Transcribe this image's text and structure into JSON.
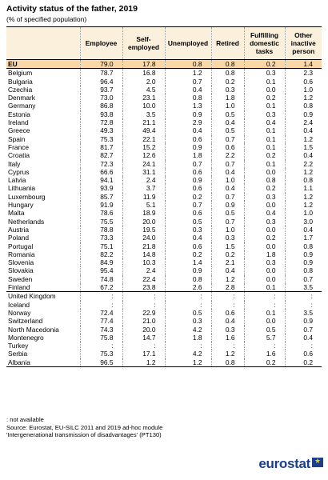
{
  "title": "Activity status of the father, 2019",
  "subtitle": "(% of specified population)",
  "columns": [
    "Employee",
    "Self-employed",
    "Unemployed",
    "Retired",
    "Fulfilling domestic tasks",
    "Other inactive person"
  ],
  "rows": [
    {
      "label": "EU",
      "v": [
        "79.0",
        "17.8",
        "0.8",
        "0.8",
        "0.2",
        "1.4"
      ]
    },
    {
      "label": "Belgium",
      "v": [
        "78.7",
        "16.8",
        "1.2",
        "0.8",
        "0.3",
        "2.3"
      ]
    },
    {
      "label": "Bulgaria",
      "v": [
        "96.4",
        "2.0",
        "0.7",
        "0.2",
        "0.1",
        "0.6"
      ]
    },
    {
      "label": "Czechia",
      "v": [
        "93.7",
        "4.5",
        "0.4",
        "0.3",
        "0.0",
        "1.0"
      ]
    },
    {
      "label": "Denmark",
      "v": [
        "73.0",
        "23.1",
        "0.8",
        "1.8",
        "0.2",
        "1.2"
      ]
    },
    {
      "label": "Germany",
      "v": [
        "86.8",
        "10.0",
        "1.3",
        "1.0",
        "0.1",
        "0.8"
      ]
    },
    {
      "label": "Estonia",
      "v": [
        "93.8",
        "3.5",
        "0.9",
        "0.5",
        "0.3",
        "0.9"
      ]
    },
    {
      "label": "Ireland",
      "v": [
        "72.8",
        "21.1",
        "2.9",
        "0.4",
        "0.4",
        "2.4"
      ]
    },
    {
      "label": "Greece",
      "v": [
        "49.3",
        "49.4",
        "0.4",
        "0.5",
        "0.1",
        "0.4"
      ]
    },
    {
      "label": "Spain",
      "v": [
        "75.3",
        "22.1",
        "0.6",
        "0.7",
        "0.1",
        "1.2"
      ]
    },
    {
      "label": "France",
      "v": [
        "81.7",
        "15.2",
        "0.9",
        "0.6",
        "0.1",
        "1.5"
      ]
    },
    {
      "label": "Croatia",
      "v": [
        "82.7",
        "12.6",
        "1.8",
        "2.2",
        "0.2",
        "0.4"
      ]
    },
    {
      "label": "Italy",
      "v": [
        "72.3",
        "24.1",
        "0.7",
        "0.7",
        "0.1",
        "2.2"
      ]
    },
    {
      "label": "Cyprus",
      "v": [
        "66.6",
        "31.1",
        "0.6",
        "0.4",
        "0.0",
        "1.2"
      ]
    },
    {
      "label": "Latvia",
      "v": [
        "94.1",
        "2.4",
        "0.9",
        "1.0",
        "0.8",
        "0.8"
      ]
    },
    {
      "label": "Lithuania",
      "v": [
        "93.9",
        "3.7",
        "0.6",
        "0.4",
        "0.2",
        "1.1"
      ]
    },
    {
      "label": "Luxembourg",
      "v": [
        "85.7",
        "11.9",
        "0.2",
        "0.7",
        "0.3",
        "1.2"
      ]
    },
    {
      "label": "Hungary",
      "v": [
        "91.9",
        "5.1",
        "0.7",
        "0.9",
        "0.0",
        "1.2"
      ]
    },
    {
      "label": "Malta",
      "v": [
        "78.6",
        "18.9",
        "0.6",
        "0.5",
        "0.4",
        "1.0"
      ]
    },
    {
      "label": "Netherlands",
      "v": [
        "75.5",
        "20.0",
        "0.5",
        "0.7",
        "0.3",
        "3.0"
      ]
    },
    {
      "label": "Austria",
      "v": [
        "78.8",
        "19.5",
        "0.3",
        "1.0",
        "0.0",
        "0.4"
      ]
    },
    {
      "label": "Poland",
      "v": [
        "73.3",
        "24.0",
        "0.4",
        "0.3",
        "0.2",
        "1.7"
      ]
    },
    {
      "label": "Portugal",
      "v": [
        "75.1",
        "21.8",
        "0.6",
        "1.5",
        "0.0",
        "0.8"
      ]
    },
    {
      "label": "Romania",
      "v": [
        "82.2",
        "14.8",
        "0.2",
        "0.2",
        "1.8",
        "0.9"
      ]
    },
    {
      "label": "Slovenia",
      "v": [
        "84.9",
        "10.3",
        "1.4",
        "2.1",
        "0.3",
        "0.9"
      ]
    },
    {
      "label": "Slovakia",
      "v": [
        "95.4",
        "2.4",
        "0.9",
        "0.4",
        "0.0",
        "0.8"
      ]
    },
    {
      "label": "Sweden",
      "v": [
        "74.8",
        "22.4",
        "0.8",
        "1.2",
        "0.0",
        "0.7"
      ]
    },
    {
      "label": "Finland",
      "v": [
        "67.2",
        "23.8",
        "2.6",
        "2.8",
        "0.1",
        "3.5"
      ]
    },
    {
      "label": "United Kingdom",
      "v": [
        ":",
        ":",
        ":",
        ":",
        ":",
        ":"
      ]
    },
    {
      "label": "Iceland",
      "v": [
        ":",
        ":",
        ":",
        ":",
        ":",
        ":"
      ]
    },
    {
      "label": "Norway",
      "v": [
        "72.4",
        "22.9",
        "0.5",
        "0.6",
        "0.1",
        "3.5"
      ]
    },
    {
      "label": "Switzerland",
      "v": [
        "77.4",
        "21.0",
        "0.3",
        "0.4",
        "0.0",
        "0.9"
      ]
    },
    {
      "label": "North Macedonia",
      "v": [
        "74.3",
        "20.0",
        "4.2",
        "0.3",
        "0.5",
        "0.7"
      ]
    },
    {
      "label": "Montenegro",
      "v": [
        "75.8",
        "14.7",
        "1.8",
        "1.6",
        "5.7",
        "0.4"
      ]
    },
    {
      "label": "Turkey",
      "v": [
        ":",
        ":",
        ":",
        ":",
        ":",
        ":"
      ]
    },
    {
      "label": "Serbia",
      "v": [
        "75.3",
        "17.1",
        "4.2",
        "1.2",
        "1.6",
        "0.6"
      ]
    },
    {
      "label": "Albania",
      "v": [
        "96.5",
        "1.2",
        "1.2",
        "0.8",
        "0.2",
        "0.2"
      ]
    }
  ],
  "footer": [
    ": not available",
    "Source: Eurostat, EU-SILC 2011 and 2019 ad-hoc module",
    "'Intergenerational transmission of disadvantages' (PT130)"
  ],
  "logo": "eurostat"
}
